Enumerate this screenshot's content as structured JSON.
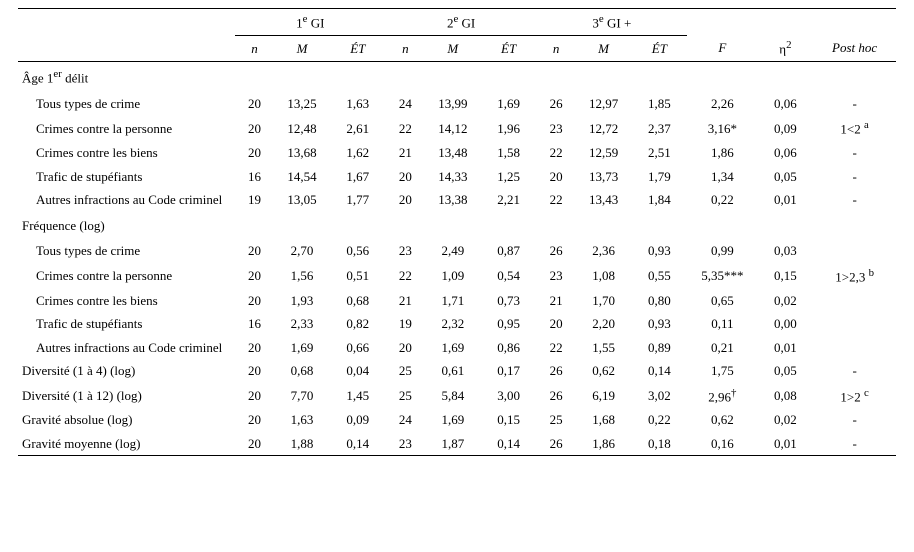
{
  "headers": {
    "group1": "1<sup>e</sup> GI",
    "group2": "2<sup>e</sup> GI",
    "group3": "3<sup>e</sup> GI +",
    "n": "n",
    "M": "M",
    "ET": "ÉT",
    "F": "F",
    "eta2": "η<sup>2</sup>",
    "posthoc": "Post hoc"
  },
  "sections": [
    {
      "title": "Âge 1<sup>er</sup> délit",
      "rows": [
        {
          "label": "Tous types de crime",
          "g1": [
            "20",
            "13,25",
            "1,63"
          ],
          "g2": [
            "24",
            "13,99",
            "1,69"
          ],
          "g3": [
            "26",
            "12,97",
            "1,85"
          ],
          "F": "2,26",
          "eta2": "0,06",
          "posthoc": "-"
        },
        {
          "label": "Crimes contre la personne",
          "g1": [
            "20",
            "12,48",
            "2,61"
          ],
          "g2": [
            "22",
            "14,12",
            "1,96"
          ],
          "g3": [
            "23",
            "12,72",
            "2,37"
          ],
          "F": "3,16*",
          "eta2": "0,09",
          "posthoc": "1<2 <sup>a</sup>"
        },
        {
          "label": "Crimes contre les biens",
          "g1": [
            "20",
            "13,68",
            "1,62"
          ],
          "g2": [
            "21",
            "13,48",
            "1,58"
          ],
          "g3": [
            "22",
            "12,59",
            "2,51"
          ],
          "F": "1,86",
          "eta2": "0,06",
          "posthoc": "-"
        },
        {
          "label": "Trafic de stupéfiants",
          "g1": [
            "16",
            "14,54",
            "1,67"
          ],
          "g2": [
            "20",
            "14,33",
            "1,25"
          ],
          "g3": [
            "20",
            "13,73",
            "1,79"
          ],
          "F": "1,34",
          "eta2": "0,05",
          "posthoc": "-"
        },
        {
          "label": "Autres infractions au Code criminel",
          "g1": [
            "19",
            "13,05",
            "1,77"
          ],
          "g2": [
            "20",
            "13,38",
            "2,21"
          ],
          "g3": [
            "22",
            "13,43",
            "1,84"
          ],
          "F": "0,22",
          "eta2": "0,01",
          "posthoc": "-"
        }
      ]
    },
    {
      "title": "Fréquence (log)",
      "rows": [
        {
          "label": "Tous types de crime",
          "g1": [
            "20",
            "2,70",
            "0,56"
          ],
          "g2": [
            "23",
            "2,49",
            "0,87"
          ],
          "g3": [
            "26",
            "2,36",
            "0,93"
          ],
          "F": "0,99",
          "eta2": "0,03",
          "posthoc": ""
        },
        {
          "label": "Crimes contre la personne",
          "g1": [
            "20",
            "1,56",
            "0,51"
          ],
          "g2": [
            "22",
            "1,09",
            "0,54"
          ],
          "g3": [
            "23",
            "1,08",
            "0,55"
          ],
          "F": "5,35***",
          "eta2": "0,15",
          "posthoc": "1>2,3 <sup>b</sup>"
        },
        {
          "label": "Crimes contre les biens",
          "g1": [
            "20",
            "1,93",
            "0,68"
          ],
          "g2": [
            "21",
            "1,71",
            "0,73"
          ],
          "g3": [
            "21",
            "1,70",
            "0,80"
          ],
          "F": "0,65",
          "eta2": "0,02",
          "posthoc": ""
        },
        {
          "label": "Trafic de stupéfiants",
          "g1": [
            "16",
            "2,33",
            "0,82"
          ],
          "g2": [
            "19",
            "2,32",
            "0,95"
          ],
          "g3": [
            "20",
            "2,20",
            "0,93"
          ],
          "F": "0,11",
          "eta2": "0,00",
          "posthoc": ""
        },
        {
          "label": "Autres infractions au Code criminel",
          "g1": [
            "20",
            "1,69",
            "0,66"
          ],
          "g2": [
            "20",
            "1,69",
            "0,86"
          ],
          "g3": [
            "22",
            "1,55",
            "0,89"
          ],
          "F": "0,21",
          "eta2": "0,01",
          "posthoc": ""
        }
      ]
    }
  ],
  "singles": [
    {
      "label": "Diversité (1 à 4) (log)",
      "g1": [
        "20",
        "0,68",
        "0,04"
      ],
      "g2": [
        "25",
        "0,61",
        "0,17"
      ],
      "g3": [
        "26",
        "0,62",
        "0,14"
      ],
      "F": "1,75",
      "eta2": "0,05",
      "posthoc": "-"
    },
    {
      "label": "Diversité (1 à 12) (log)",
      "g1": [
        "20",
        "7,70",
        "1,45"
      ],
      "g2": [
        "25",
        "5,84",
        "3,00"
      ],
      "g3": [
        "26",
        "6,19",
        "3,02"
      ],
      "F": "2,96<sup>†</sup>",
      "eta2": "0,08",
      "posthoc": "1>2 <sup>c</sup>"
    },
    {
      "label": "Gravité absolue (log)",
      "g1": [
        "20",
        "1,63",
        "0,09"
      ],
      "g2": [
        "24",
        "1,69",
        "0,15"
      ],
      "g3": [
        "25",
        "1,68",
        "0,22"
      ],
      "F": "0,62",
      "eta2": "0,02",
      "posthoc": "-"
    },
    {
      "label": "Gravité moyenne (log)",
      "g1": [
        "20",
        "1,88",
        "0,14"
      ],
      "g2": [
        "23",
        "1,87",
        "0,14"
      ],
      "g3": [
        "26",
        "1,86",
        "0,18"
      ],
      "F": "0,16",
      "eta2": "0,01",
      "posthoc": "-"
    }
  ]
}
